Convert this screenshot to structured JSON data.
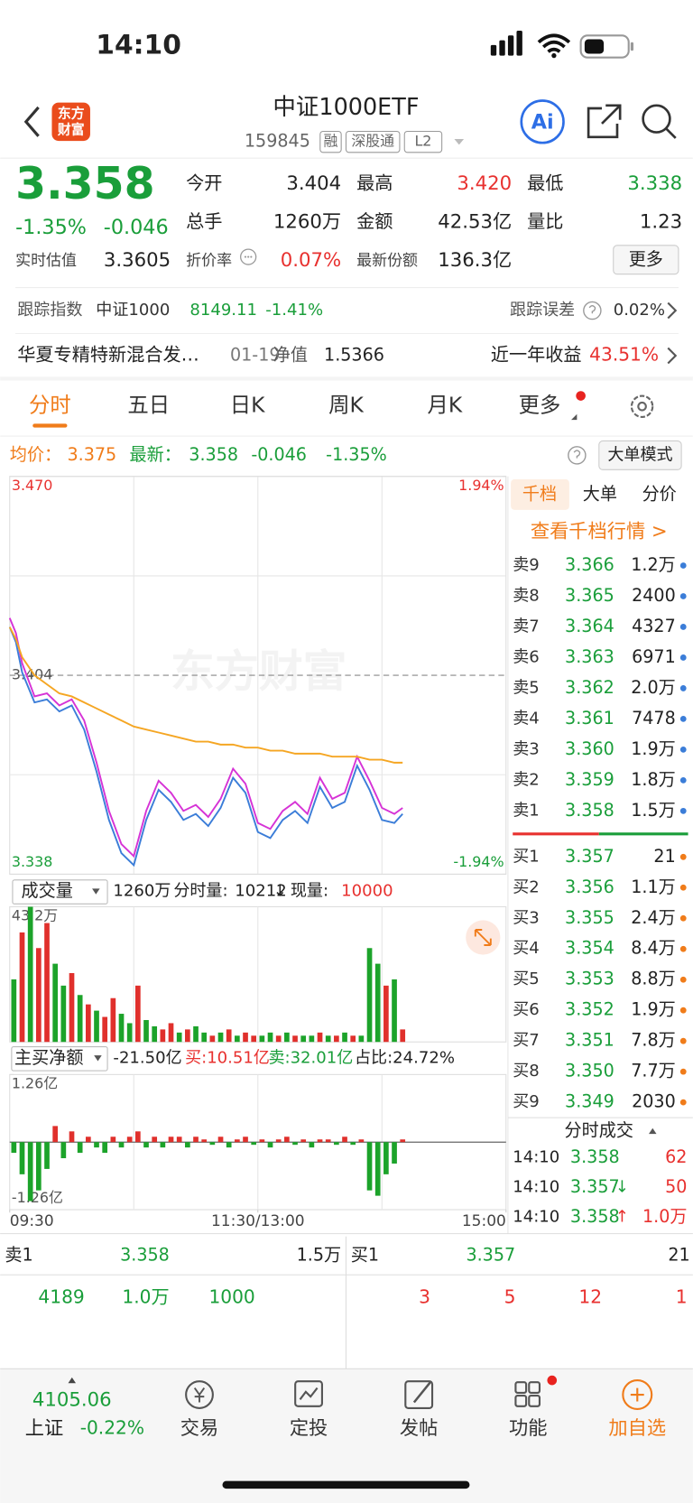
{
  "status": {
    "time": "14:10"
  },
  "header": {
    "logo": [
      "东方",
      "财富"
    ],
    "title": "中证1000ETF",
    "code": "159845",
    "tags": [
      "融",
      "深股通",
      "L2"
    ],
    "ai": "Ai"
  },
  "quote": {
    "price": "3.358",
    "change_pct": "-1.35%",
    "change": "-0.046",
    "fields": [
      {
        "label": "今开",
        "value": "3.404"
      },
      {
        "label": "最高",
        "value": "3.420"
      },
      {
        "label": "最低",
        "value": "3.338"
      },
      {
        "label": "总手",
        "value": "1260万"
      },
      {
        "label": "金额",
        "value": "42.53亿"
      },
      {
        "label": "量比",
        "value": "1.23"
      },
      {
        "label": "实时估值",
        "value": "3.3605"
      },
      {
        "label": "折价率",
        "value": "0.07%"
      },
      {
        "label": "最新份额",
        "value": "136.3亿"
      }
    ],
    "more": "更多"
  },
  "tracking": {
    "label": "跟踪指数",
    "index": "中证1000",
    "value": "8149.11",
    "pct": "-1.41%",
    "error_label": "跟踪误差",
    "error": "0.02%"
  },
  "fund": {
    "name": "华夏专精特新混合发…",
    "date": "01-19",
    "nav_label": "净值",
    "nav": "1.5366",
    "return_label": "近一年收益",
    "return": "43.51%"
  },
  "tabs": [
    "分时",
    "五日",
    "日K",
    "周K",
    "月K",
    "更多"
  ],
  "legend": {
    "avg_label": "均价：",
    "avg": "3.375",
    "latest_label": "最新：",
    "latest": "3.358",
    "change": "-0.046",
    "pct": "-1.35%",
    "mode": "大单模式"
  },
  "watermark": "东方财富",
  "volume_header": {
    "label": "成交量",
    "total": "1260万",
    "minute_label": "分时量:",
    "minute": "10212",
    "arrow": "↓",
    "current_label": "现量:",
    "current": "10000"
  },
  "flow_header": {
    "label": "主买净额",
    "net": "-21.50亿",
    "buy": "买:10.51亿",
    "sell": "卖:32.01亿",
    "ratio": "占比:24.72%"
  },
  "order_book": {
    "tabs": [
      "千档",
      "大单",
      "分价"
    ],
    "link": "查看千档行情 >",
    "asks": [
      [
        "卖9",
        "3.366",
        "1.2万"
      ],
      [
        "卖8",
        "3.365",
        "2400"
      ],
      [
        "卖7",
        "3.364",
        "4327"
      ],
      [
        "卖6",
        "3.363",
        "6971"
      ],
      [
        "卖5",
        "3.362",
        "2.0万"
      ],
      [
        "卖4",
        "3.361",
        "7478"
      ],
      [
        "卖3",
        "3.360",
        "1.9万"
      ],
      [
        "卖2",
        "3.359",
        "1.8万"
      ],
      [
        "卖1",
        "3.358",
        "1.5万"
      ]
    ],
    "bids": [
      [
        "买1",
        "3.357",
        "21"
      ],
      [
        "买2",
        "3.356",
        "1.1万"
      ],
      [
        "买3",
        "3.355",
        "2.4万"
      ],
      [
        "买4",
        "3.354",
        "8.4万"
      ],
      [
        "买5",
        "3.353",
        "8.8万"
      ],
      [
        "买6",
        "3.352",
        "1.9万"
      ],
      [
        "买7",
        "3.351",
        "7.8万"
      ],
      [
        "买8",
        "3.350",
        "7.7万"
      ],
      [
        "买9",
        "3.349",
        "2030"
      ]
    ]
  },
  "trades": {
    "title": "分时成交",
    "rows": [
      {
        "time": "14:10",
        "price": "3.358",
        "volume": "62"
      },
      {
        "time": "14:10",
        "price": "3.357",
        "arrow": "↓",
        "volume": "50"
      },
      {
        "time": "14:10",
        "price": "3.358",
        "arrow": "↑",
        "volume": "1.0万"
      }
    ]
  },
  "summary": {
    "ask": [
      "卖1",
      "3.358",
      "1.5万"
    ],
    "bid": [
      "买1",
      "3.357",
      "21"
    ],
    "left": [
      "4189",
      "1.0万",
      "1000"
    ],
    "right": [
      "3",
      "5",
      "12",
      "1"
    ]
  },
  "nav": {
    "index_value": "4105.06",
    "index_name": "上证",
    "index_pct": "-0.22%",
    "items": [
      "交易",
      "定投",
      "发帖",
      "功能",
      "加自选"
    ]
  },
  "chart_data": [
    {
      "type": "line",
      "x": [
        0,
        3,
        6,
        12,
        18,
        24,
        30,
        36,
        42,
        48,
        54,
        60,
        66,
        72,
        78,
        84,
        90,
        96,
        102,
        108,
        114,
        120,
        126,
        132,
        138,
        144,
        150,
        156,
        162,
        168,
        174,
        180,
        186,
        190
      ],
      "xlim": [
        0,
        240
      ],
      "ylim": [
        3.338,
        3.47
      ],
      "yticks": [
        {
          "value": 3.47,
          "label": "3.470"
        },
        3.404,
        3.338
      ],
      "y2lim": [
        -1.94,
        1.94
      ],
      "y2ticks": [
        {
          "value": 1.94,
          "label": "1.94%"
        },
        {
          "value": -1.94,
          "label": "-1.94%"
        }
      ],
      "series": [
        {
          "name": "最新",
          "color": "#3b7dd8",
          "values": [
            3.42,
            3.415,
            3.405,
            3.395,
            3.396,
            3.392,
            3.394,
            3.386,
            3.372,
            3.356,
            3.345,
            3.341,
            3.356,
            3.366,
            3.362,
            3.356,
            3.358,
            3.354,
            3.36,
            3.37,
            3.365,
            3.352,
            3.35,
            3.356,
            3.359,
            3.355,
            3.367,
            3.36,
            3.362,
            3.374,
            3.366,
            3.356,
            3.355,
            3.358
          ]
        },
        {
          "color": "#d633d6",
          "values": [
            3.423,
            3.418,
            3.408,
            3.397,
            3.398,
            3.394,
            3.396,
            3.389,
            3.375,
            3.359,
            3.348,
            3.344,
            3.359,
            3.369,
            3.365,
            3.359,
            3.361,
            3.357,
            3.363,
            3.373,
            3.368,
            3.355,
            3.353,
            3.359,
            3.362,
            3.358,
            3.37,
            3.363,
            3.365,
            3.377,
            3.369,
            3.36,
            3.358,
            3.36
          ]
        },
        {
          "name": "均价",
          "color": "#f5a623",
          "values": [
            3.42,
            3.416,
            3.41,
            3.404,
            3.401,
            3.398,
            3.397,
            3.395,
            3.393,
            3.391,
            3.389,
            3.387,
            3.386,
            3.385,
            3.384,
            3.383,
            3.382,
            3.382,
            3.381,
            3.381,
            3.38,
            3.38,
            3.379,
            3.379,
            3.378,
            3.378,
            3.378,
            3.377,
            3.377,
            3.377,
            3.376,
            3.376,
            3.375,
            3.375
          ]
        }
      ]
    },
    {
      "type": "bar",
      "x": [
        0,
        4,
        8,
        12,
        16,
        20,
        24,
        28,
        32,
        36,
        40,
        44,
        48,
        52,
        56,
        60,
        64,
        68,
        72,
        76,
        80,
        84,
        88,
        92,
        96,
        100,
        104,
        108,
        112,
        116,
        120,
        124,
        128,
        132,
        136,
        140,
        144,
        148,
        152,
        156,
        160,
        164,
        168,
        172,
        176,
        180,
        184,
        188
      ],
      "xlim": [
        0,
        240
      ],
      "ylim": [
        0,
        43.2
      ],
      "yticks": [
        {
          "value": 43.2,
          "label": "43.2万"
        }
      ],
      "values": [
        20,
        35,
        43.2,
        30,
        38,
        25,
        18,
        22,
        15,
        12,
        10,
        8,
        14,
        9,
        6,
        18,
        7,
        5,
        4,
        6,
        3,
        4,
        5,
        3,
        2,
        3,
        4,
        2,
        3,
        2,
        2,
        3,
        2,
        3,
        2,
        2,
        2,
        3,
        2,
        2,
        3,
        2,
        2,
        30,
        25,
        18,
        20,
        4
      ],
      "colors": [
        "#1ca32a",
        "#e0302c",
        "#1ca32a",
        "#e0302c",
        "#e0302c",
        "#1ca32a",
        "#1ca32a",
        "#e0302c",
        "#1ca32a",
        "#e0302c",
        "#1ca32a",
        "#e0302c",
        "#e0302c",
        "#1ca32a",
        "#1ca32a",
        "#e0302c",
        "#1ca32a",
        "#1ca32a",
        "#e0302c",
        "#e0302c",
        "#1ca32a",
        "#e0302c",
        "#1ca32a",
        "#1ca32a",
        "#e0302c",
        "#1ca32a",
        "#e0302c",
        "#1ca32a",
        "#e0302c",
        "#e0302c",
        "#1ca32a",
        "#1ca32a",
        "#e0302c",
        "#1ca32a",
        "#e0302c",
        "#1ca32a",
        "#1ca32a",
        "#e0302c",
        "#1ca32a",
        "#e0302c",
        "#1ca32a",
        "#e0302c",
        "#1ca32a",
        "#1ca32a",
        "#1ca32a",
        "#e0302c",
        "#1ca32a",
        "#e0302c"
      ]
    },
    {
      "type": "bar",
      "x": [
        0,
        4,
        8,
        12,
        16,
        20,
        24,
        28,
        32,
        36,
        40,
        44,
        48,
        52,
        56,
        60,
        64,
        68,
        72,
        76,
        80,
        84,
        88,
        92,
        96,
        100,
        104,
        108,
        112,
        116,
        120,
        124,
        128,
        132,
        136,
        140,
        144,
        148,
        152,
        156,
        160,
        164,
        168,
        172,
        176,
        180,
        184,
        188
      ],
      "xlim": [
        0,
        240
      ],
      "xticks": [
        {
          "value": 0,
          "label": "09:30"
        },
        {
          "value": 120,
          "label": "11:30/13:00"
        },
        {
          "value": 240,
          "label": "15:00"
        }
      ],
      "ylim": [
        -1.26,
        1.26
      ],
      "yticks": [
        {
          "value": 1.26,
          "label": "1.26亿"
        },
        {
          "value": -1.26,
          "label": "-1.26亿"
        }
      ],
      "values": [
        -0.2,
        -0.6,
        -1.1,
        -0.9,
        -0.5,
        0.3,
        -0.3,
        0.2,
        -0.2,
        0.1,
        -0.1,
        -0.2,
        0.1,
        -0.1,
        0.1,
        0.2,
        -0.1,
        0.1,
        -0.1,
        0.1,
        0.1,
        -0.1,
        0.1,
        0.05,
        -0.05,
        0.1,
        -0.1,
        0.05,
        0.1,
        -0.05,
        0.05,
        -0.1,
        0.05,
        0.1,
        -0.05,
        0.05,
        -0.1,
        0.05,
        0.05,
        -0.05,
        0.1,
        -0.05,
        0.05,
        -0.9,
        -1.0,
        -0.6,
        -0.4,
        0.05
      ],
      "up_color": "#e0302c",
      "down_color": "#1ca32a"
    }
  ]
}
